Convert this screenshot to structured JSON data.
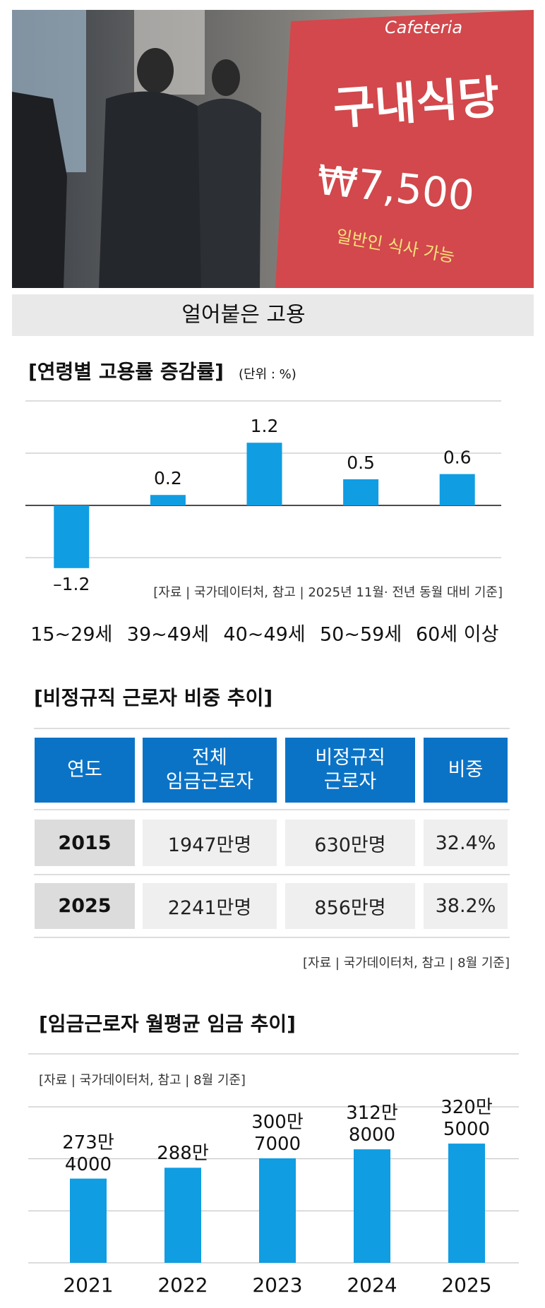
{
  "photo": {
    "sign": [
      "Cafeteria",
      "구내식당",
      "₩7,500",
      "일반인 식사 가능"
    ]
  },
  "banner": "얼어붙은 고용",
  "chart_data": [
    {
      "type": "bar",
      "title": "[연령별 고용률 증감률]",
      "unit": "(단위 : %)",
      "source": "[자료 | 국가데이터처, 참고 | 2025년 11월· 전년 동월 대비 기준]",
      "categories": [
        "15~29세",
        "39~49세",
        "40~49세",
        "50~59세",
        "60세 이상"
      ],
      "values": [
        -1.2,
        0.2,
        1.2,
        0.5,
        0.6
      ],
      "value_labels": [
        "–1.2",
        "0.2",
        "1.2",
        "0.5",
        "0.6"
      ],
      "color": "#109de2",
      "ylim": [
        -1.5,
        2
      ],
      "yticks": [
        -1,
        0,
        1,
        2
      ],
      "grid": true
    },
    {
      "type": "bar",
      "title": "[임금근로자 월평균 임금 추이]",
      "source": "[자료 | 국가데이터처, 참고 | 8월 기준]",
      "categories": [
        "2021",
        "2022",
        "2023",
        "2024",
        "2025"
      ],
      "values": [
        2734000,
        2880000,
        3007000,
        3128000,
        3205000
      ],
      "value_labels": [
        "273만\n4000",
        "288만",
        "300만\n7000",
        "312만\n8000",
        "320만\n5000"
      ],
      "color": "#109de2",
      "ylim": [
        1600000,
        3700000
      ],
      "yticks": [
        1600000,
        2300000,
        3000000,
        3700000
      ],
      "grid": true
    }
  ],
  "table": {
    "title": "[비정규직 근로자 비중 추이]",
    "header": [
      "연도",
      "전체\n임금근로자",
      "비정규직\n근로자",
      "비중"
    ],
    "rows": [
      [
        "2015",
        "1947만명",
        "630만명",
        "32.4%"
      ],
      [
        "2025",
        "2241만명",
        "856만명",
        "38.2%"
      ]
    ],
    "source": "[자료 | 국가데이터처, 참고 | 8월 기준]"
  }
}
